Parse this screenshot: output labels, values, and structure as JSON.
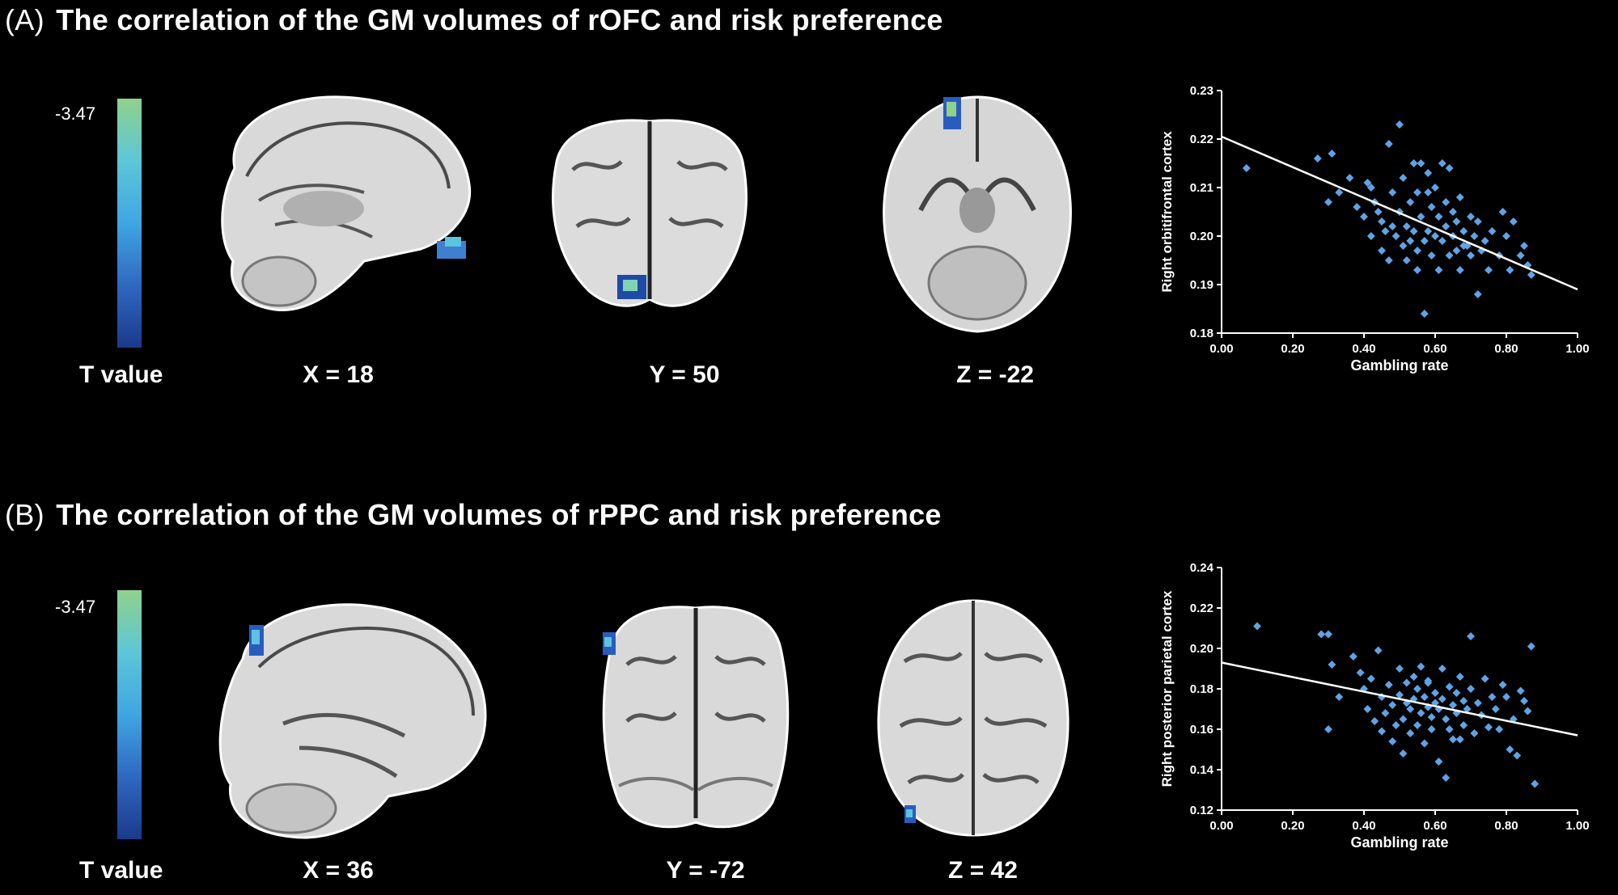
{
  "panels": [
    {
      "tag": "(A)",
      "title": "The correlation of the GM volumes of rOFC and risk preference",
      "colorbar": {
        "max_label": "-3.47",
        "caption": "T value",
        "colors": [
          "#1b3a8c",
          "#2f68c0",
          "#3fa6e2",
          "#5dc6d8",
          "#8fd28a"
        ]
      },
      "slices": [
        {
          "view": "sagittal",
          "label": "X = 18"
        },
        {
          "view": "coronal",
          "label": "Y = 50"
        },
        {
          "view": "axial",
          "label": "Z = -22"
        }
      ],
      "chart_data": {
        "type": "scatter",
        "xlabel": "Gambling rate",
        "ylabel": "Right orbitifrontal cortex",
        "xlim": [
          0.0,
          1.0
        ],
        "ylim": [
          0.18,
          0.23
        ],
        "xticks": [
          "0.00",
          "0.20",
          "0.40",
          "0.60",
          "0.80",
          "1.00"
        ],
        "yticks": [
          "0.18",
          "0.19",
          "0.20",
          "0.21",
          "0.22",
          "0.23"
        ],
        "trendline": [
          [
            0.0,
            0.2205
          ],
          [
            1.0,
            0.189
          ]
        ],
        "point_color": "#5fa3e6",
        "points": [
          [
            0.07,
            0.214
          ],
          [
            0.27,
            0.216
          ],
          [
            0.3,
            0.207
          ],
          [
            0.31,
            0.217
          ],
          [
            0.33,
            0.209
          ],
          [
            0.36,
            0.212
          ],
          [
            0.38,
            0.206
          ],
          [
            0.4,
            0.204
          ],
          [
            0.41,
            0.211
          ],
          [
            0.42,
            0.2
          ],
          [
            0.42,
            0.21
          ],
          [
            0.43,
            0.207
          ],
          [
            0.44,
            0.205
          ],
          [
            0.45,
            0.203
          ],
          [
            0.45,
            0.197
          ],
          [
            0.46,
            0.201
          ],
          [
            0.47,
            0.195
          ],
          [
            0.47,
            0.219
          ],
          [
            0.48,
            0.209
          ],
          [
            0.49,
            0.2
          ],
          [
            0.5,
            0.223
          ],
          [
            0.5,
            0.205
          ],
          [
            0.51,
            0.198
          ],
          [
            0.51,
            0.212
          ],
          [
            0.52,
            0.202
          ],
          [
            0.52,
            0.195
          ],
          [
            0.53,
            0.199
          ],
          [
            0.53,
            0.207
          ],
          [
            0.54,
            0.215
          ],
          [
            0.54,
            0.201
          ],
          [
            0.55,
            0.193
          ],
          [
            0.55,
            0.209
          ],
          [
            0.55,
            0.197
          ],
          [
            0.56,
            0.215
          ],
          [
            0.56,
            0.204
          ],
          [
            0.57,
            0.199
          ],
          [
            0.57,
            0.184
          ],
          [
            0.58,
            0.213
          ],
          [
            0.58,
            0.201
          ],
          [
            0.59,
            0.206
          ],
          [
            0.59,
            0.196
          ],
          [
            0.6,
            0.21
          ],
          [
            0.6,
            0.2
          ],
          [
            0.61,
            0.204
          ],
          [
            0.61,
            0.193
          ],
          [
            0.62,
            0.215
          ],
          [
            0.62,
            0.199
          ],
          [
            0.63,
            0.207
          ],
          [
            0.63,
            0.202
          ],
          [
            0.64,
            0.196
          ],
          [
            0.64,
            0.214
          ],
          [
            0.65,
            0.2
          ],
          [
            0.65,
            0.205
          ],
          [
            0.66,
            0.197
          ],
          [
            0.66,
            0.203
          ],
          [
            0.67,
            0.208
          ],
          [
            0.67,
            0.193
          ],
          [
            0.68,
            0.201
          ],
          [
            0.69,
            0.198
          ],
          [
            0.7,
            0.204
          ],
          [
            0.7,
            0.196
          ],
          [
            0.71,
            0.2
          ],
          [
            0.72,
            0.188
          ],
          [
            0.72,
            0.203
          ],
          [
            0.73,
            0.197
          ],
          [
            0.74,
            0.199
          ],
          [
            0.75,
            0.193
          ],
          [
            0.76,
            0.201
          ],
          [
            0.78,
            0.196
          ],
          [
            0.79,
            0.205
          ],
          [
            0.8,
            0.2
          ],
          [
            0.81,
            0.193
          ],
          [
            0.82,
            0.203
          ],
          [
            0.84,
            0.196
          ],
          [
            0.85,
            0.198
          ],
          [
            0.86,
            0.194
          ],
          [
            0.87,
            0.192
          ],
          [
            0.48,
            0.202
          ],
          [
            0.58,
            0.209
          ],
          [
            0.68,
            0.198
          ]
        ]
      }
    },
    {
      "tag": "(B)",
      "title": "The correlation of the GM volumes of rPPC and risk preference",
      "colorbar": {
        "max_label": "-3.47",
        "caption": "T value",
        "colors": [
          "#1b3a8c",
          "#2f68c0",
          "#3fa6e2",
          "#5dc6d8",
          "#8fd28a"
        ]
      },
      "slices": [
        {
          "view": "sagittal",
          "label": "X = 36"
        },
        {
          "view": "coronal",
          "label": "Y = -72"
        },
        {
          "view": "axial",
          "label": "Z = 42"
        }
      ],
      "chart_data": {
        "type": "scatter",
        "xlabel": "Gambling rate",
        "ylabel": "Right posterior parietal cortex",
        "xlim": [
          0.0,
          1.0
        ],
        "ylim": [
          0.12,
          0.24
        ],
        "xticks": [
          "0.00",
          "0.20",
          "0.40",
          "0.60",
          "0.80",
          "1.00"
        ],
        "yticks": [
          "0.12",
          "0.14",
          "0.16",
          "0.18",
          "0.20",
          "0.22",
          "0.24"
        ],
        "trendline": [
          [
            0.0,
            0.193
          ],
          [
            1.0,
            0.157
          ]
        ],
        "point_color": "#5fa3e6",
        "points": [
          [
            0.1,
            0.211
          ],
          [
            0.28,
            0.207
          ],
          [
            0.3,
            0.207
          ],
          [
            0.3,
            0.16
          ],
          [
            0.31,
            0.192
          ],
          [
            0.33,
            0.176
          ],
          [
            0.37,
            0.196
          ],
          [
            0.39,
            0.188
          ],
          [
            0.4,
            0.18
          ],
          [
            0.41,
            0.17
          ],
          [
            0.42,
            0.185
          ],
          [
            0.43,
            0.164
          ],
          [
            0.44,
            0.199
          ],
          [
            0.45,
            0.176
          ],
          [
            0.45,
            0.159
          ],
          [
            0.46,
            0.168
          ],
          [
            0.47,
            0.182
          ],
          [
            0.48,
            0.172
          ],
          [
            0.48,
            0.154
          ],
          [
            0.49,
            0.162
          ],
          [
            0.5,
            0.177
          ],
          [
            0.5,
            0.19
          ],
          [
            0.51,
            0.165
          ],
          [
            0.51,
            0.148
          ],
          [
            0.52,
            0.173
          ],
          [
            0.52,
            0.183
          ],
          [
            0.53,
            0.158
          ],
          [
            0.53,
            0.17
          ],
          [
            0.54,
            0.186
          ],
          [
            0.54,
            0.175
          ],
          [
            0.55,
            0.162
          ],
          [
            0.55,
            0.18
          ],
          [
            0.56,
            0.168
          ],
          [
            0.56,
            0.191
          ],
          [
            0.57,
            0.176
          ],
          [
            0.57,
            0.153
          ],
          [
            0.58,
            0.171
          ],
          [
            0.58,
            0.183
          ],
          [
            0.59,
            0.166
          ],
          [
            0.59,
            0.16
          ],
          [
            0.6,
            0.178
          ],
          [
            0.6,
            0.173
          ],
          [
            0.61,
            0.144
          ],
          [
            0.61,
            0.17
          ],
          [
            0.62,
            0.19
          ],
          [
            0.62,
            0.175
          ],
          [
            0.63,
            0.165
          ],
          [
            0.63,
            0.136
          ],
          [
            0.64,
            0.181
          ],
          [
            0.64,
            0.16
          ],
          [
            0.65,
            0.172
          ],
          [
            0.66,
            0.178
          ],
          [
            0.66,
            0.168
          ],
          [
            0.67,
            0.186
          ],
          [
            0.67,
            0.155
          ],
          [
            0.68,
            0.174
          ],
          [
            0.68,
            0.162
          ],
          [
            0.69,
            0.17
          ],
          [
            0.7,
            0.206
          ],
          [
            0.7,
            0.18
          ],
          [
            0.71,
            0.158
          ],
          [
            0.72,
            0.173
          ],
          [
            0.73,
            0.167
          ],
          [
            0.74,
            0.185
          ],
          [
            0.75,
            0.161
          ],
          [
            0.76,
            0.176
          ],
          [
            0.77,
            0.17
          ],
          [
            0.78,
            0.16
          ],
          [
            0.79,
            0.182
          ],
          [
            0.8,
            0.176
          ],
          [
            0.81,
            0.15
          ],
          [
            0.82,
            0.165
          ],
          [
            0.83,
            0.147
          ],
          [
            0.84,
            0.179
          ],
          [
            0.85,
            0.174
          ],
          [
            0.86,
            0.169
          ],
          [
            0.87,
            0.201
          ],
          [
            0.88,
            0.133
          ],
          [
            0.58,
            0.184
          ],
          [
            0.65,
            0.155
          ]
        ]
      }
    }
  ]
}
